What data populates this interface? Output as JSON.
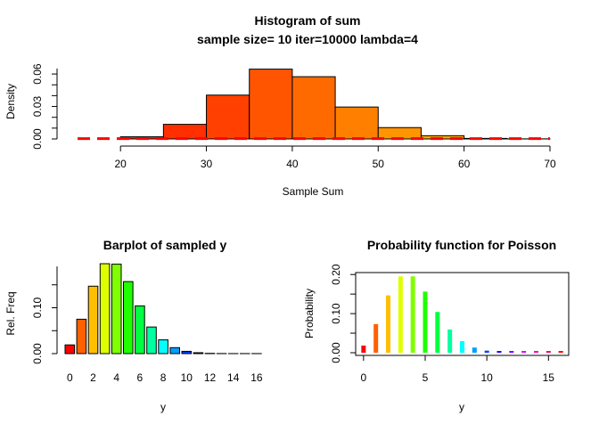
{
  "chart_data": [
    {
      "type": "bar",
      "title": "Histogram of sum",
      "subtitle": "sample size= 10 iter=10000 lambda=4",
      "xlabel": "Sample Sum",
      "ylabel": "Density",
      "xlim": [
        15,
        70
      ],
      "ylim": [
        0,
        0.065
      ],
      "x_ticks": [
        "20",
        "30",
        "40",
        "50",
        "60",
        "70"
      ],
      "y_ticks": [
        "0.00",
        "0.03",
        "0.06"
      ],
      "bins": [
        [
          20,
          25
        ],
        [
          25,
          30
        ],
        [
          30,
          35
        ],
        [
          35,
          40
        ],
        [
          40,
          45
        ],
        [
          45,
          50
        ],
        [
          50,
          55
        ],
        [
          55,
          60
        ],
        [
          60,
          65
        ],
        [
          65,
          70
        ]
      ],
      "values": [
        0.002,
        0.0135,
        0.0405,
        0.0645,
        0.0575,
        0.0295,
        0.0105,
        0.003,
        0.0005,
        0.0001
      ],
      "colors": [
        "#FF2A00",
        "#FF2F00",
        "#FF4000",
        "#FF5500",
        "#FF6A00",
        "#FF8000",
        "#FF9500",
        "#FFAA00",
        "#FFBF00",
        "#FFD400"
      ],
      "overlay": {
        "type": "line",
        "style": "dashed",
        "color": "#FF0000",
        "x": [
          15,
          70
        ],
        "y": [
          0.0003,
          0.0003
        ]
      }
    },
    {
      "type": "bar",
      "title": "Barplot of sampled y",
      "xlabel": "y",
      "ylabel": "Rel. Freq",
      "ylim": [
        0,
        0.2
      ],
      "categories": [
        "0",
        "1",
        "2",
        "3",
        "4",
        "5",
        "6",
        "7",
        "8",
        "9",
        "10",
        "11",
        "12",
        "13",
        "14",
        "15",
        "16"
      ],
      "x_ticks": [
        "0",
        "2",
        "4",
        "6",
        "8",
        "10",
        "12",
        "14",
        "16"
      ],
      "y_ticks": [
        "0.00",
        "0.10"
      ],
      "values": [
        0.019,
        0.075,
        0.147,
        0.196,
        0.195,
        0.157,
        0.104,
        0.058,
        0.03,
        0.013,
        0.005,
        0.002,
        0.0006,
        0.0002,
        0.0001,
        0.0001,
        0.0001
      ],
      "colors": [
        "#FF0000",
        "#FF6000",
        "#FFBF00",
        "#DFFF00",
        "#80FF00",
        "#20FF00",
        "#00FF40",
        "#00FF9F",
        "#00FFFF",
        "#009FFF",
        "#0040FF",
        "#2000FF",
        "#8000FF",
        "#DF00FF",
        "#FF00BF",
        "#FF0060",
        "#FF0000"
      ]
    },
    {
      "type": "bar",
      "title": "Probability function for Poisson",
      "xlabel": "y",
      "ylabel": "Probability",
      "xlim": [
        -0.64,
        16.64
      ],
      "ylim": [
        0,
        0.205
      ],
      "x_ticks": [
        "0",
        "5",
        "10",
        "15"
      ],
      "y_ticks": [
        "0.00",
        "0.10",
        "0.20"
      ],
      "x": [
        0,
        1,
        2,
        3,
        4,
        5,
        6,
        7,
        8,
        9,
        10,
        11,
        12,
        13,
        14,
        15,
        16
      ],
      "values": [
        0.0183,
        0.0733,
        0.1465,
        0.1954,
        0.1954,
        0.1563,
        0.1042,
        0.0595,
        0.0298,
        0.0132,
        0.0053,
        0.0019,
        0.0006,
        0.0002,
        0.0001,
        0.0,
        0.0
      ],
      "colors": [
        "#FF0000",
        "#FF6000",
        "#FFBF00",
        "#DFFF00",
        "#80FF00",
        "#20FF00",
        "#00FF40",
        "#00FF9F",
        "#00FFFF",
        "#009FFF",
        "#0040FF",
        "#2000FF",
        "#8000FF",
        "#DF00FF",
        "#FF00BF",
        "#FF0060",
        "#FF0000"
      ]
    }
  ]
}
